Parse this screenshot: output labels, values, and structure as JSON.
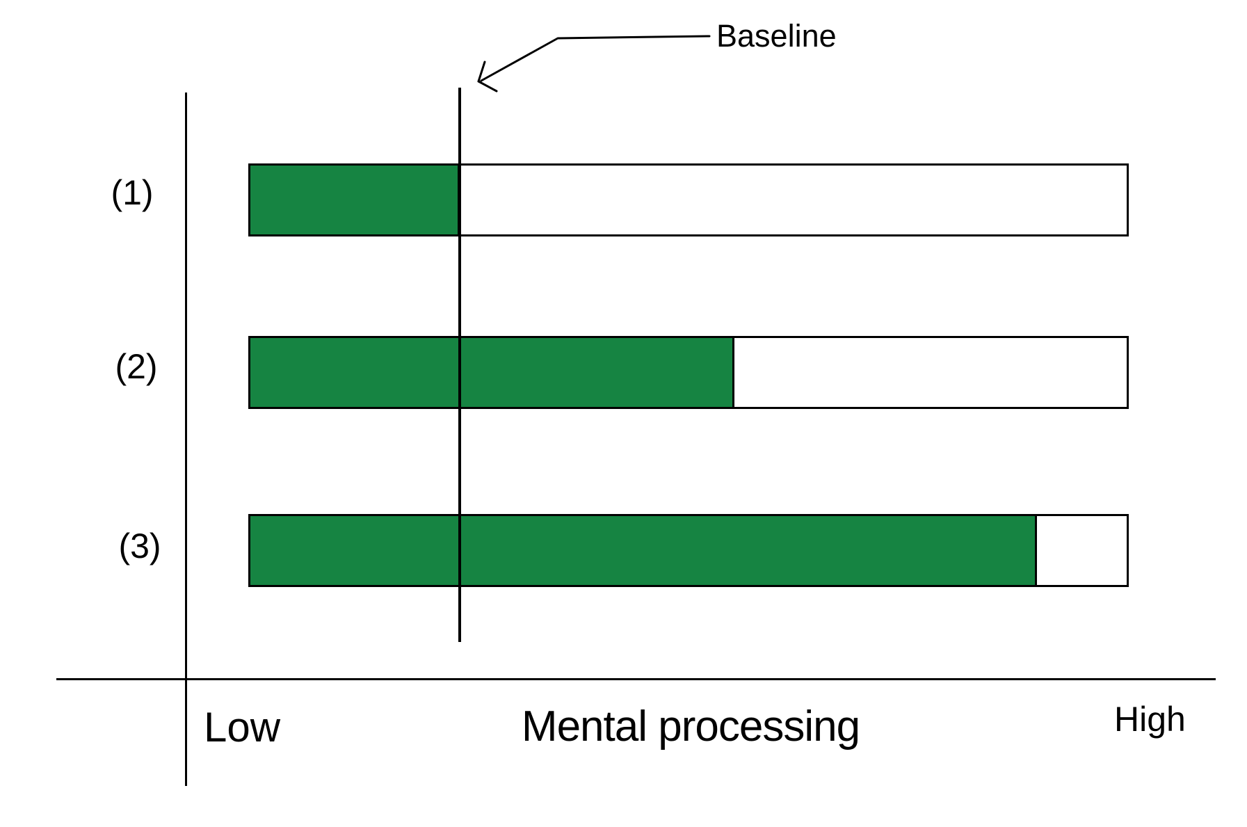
{
  "colors": {
    "bar_fill": "#168442",
    "bar_track": "#ffffff",
    "outline": "#000000",
    "axis": "#000000",
    "text": "#000000",
    "background": "#ffffff"
  },
  "chart_data": {
    "type": "bar",
    "orientation": "horizontal",
    "title": "",
    "categories": [
      "(1)",
      "(2)",
      "(3)"
    ],
    "series": [
      {
        "name": "mental-processing-amount",
        "values_pct": [
          23.9,
          55.2,
          89.8
        ]
      }
    ],
    "bar_track_pct": 100,
    "baseline_pct": 23.9,
    "annotation_label": "Baseline",
    "xlabel": "Mental processing",
    "x_min_label": "Low",
    "x_max_label": "High",
    "ylabel": "",
    "grid": false,
    "legend": "none",
    "axis_note": "qualitative axis from Low to High; vertical reference line marks Baseline level crossing all three bars"
  }
}
